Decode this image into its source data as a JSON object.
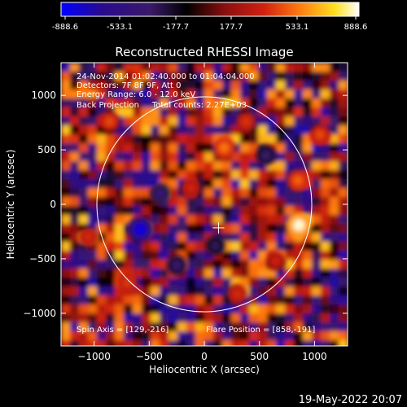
{
  "colors": {
    "background": "#000000",
    "foreground": "#ffffff",
    "limb": "#ffffff",
    "colormap": [
      "#0000ff",
      "#2a0a8c",
      "#3a1a6a",
      "#000000",
      "#8a0f0f",
      "#d02010",
      "#ff7a10",
      "#ffe020",
      "#ffffff"
    ]
  },
  "colorbar": {
    "tick_labels": [
      "-888.6",
      "-533.1",
      "-177.7",
      "177.7",
      "533.1",
      "888.6"
    ]
  },
  "plot": {
    "info_lines": [
      "24-Nov-2014 01:02:40.000 to 01:04:04.000",
      "Detectors: 7F 8F 9F, Att 0",
      "Energy Range: 6.0 - 12.0 keV",
      "Back Projection     Total counts: 2.27E+03"
    ],
    "spin_axis": "Spin Axis = [129,-216]",
    "flare_position": "Flare Position = [858,-191]"
  },
  "footer": {
    "date": "19-May-2022 20:07"
  },
  "chart_data": {
    "type": "heatmap",
    "title": "Reconstructed RHESSI Image",
    "xlabel": "Heliocentric X (arcsec)",
    "ylabel": "Heliocentric Y (arcsec)",
    "xlim": [
      -1300,
      1300
    ],
    "ylim": [
      -1300,
      1300
    ],
    "xticks": [
      -1000,
      -500,
      0,
      500,
      1000
    ],
    "yticks": [
      1000,
      500,
      0,
      -500,
      -1000
    ],
    "xtick_labels": [
      "−1000",
      "−500",
      "0",
      "500",
      "1000"
    ],
    "ytick_labels": [
      "1000",
      "500",
      "0",
      "−500",
      "−1000"
    ],
    "color_range": [
      -888.6,
      888.6
    ],
    "solar_limb": {
      "center": [
        0,
        0
      ],
      "radius_arcsec": 975
    },
    "center_marker": [
      129,
      -216
    ],
    "sources": [
      {
        "x": 858,
        "y": -191,
        "value": 860
      },
      {
        "x": -580,
        "y": -230,
        "value": -820
      },
      {
        "x": -400,
        "y": 100,
        "value": -430
      },
      {
        "x": 180,
        "y": 520,
        "value": 520
      },
      {
        "x": -860,
        "y": 760,
        "value": 420
      },
      {
        "x": 380,
        "y": 760,
        "value": 360
      },
      {
        "x": 850,
        "y": 220,
        "value": 480
      },
      {
        "x": 560,
        "y": 450,
        "value": -360
      },
      {
        "x": -120,
        "y": 150,
        "value": 320
      },
      {
        "x": -700,
        "y": -720,
        "value": 380
      },
      {
        "x": 300,
        "y": -820,
        "value": 340
      },
      {
        "x": -250,
        "y": -560,
        "value": -380
      },
      {
        "x": 1050,
        "y": 640,
        "value": 420
      },
      {
        "x": 650,
        "y": -520,
        "value": 300
      },
      {
        "x": -1050,
        "y": -300,
        "value": 340
      },
      {
        "x": 100,
        "y": -380,
        "value": -320
      }
    ]
  }
}
